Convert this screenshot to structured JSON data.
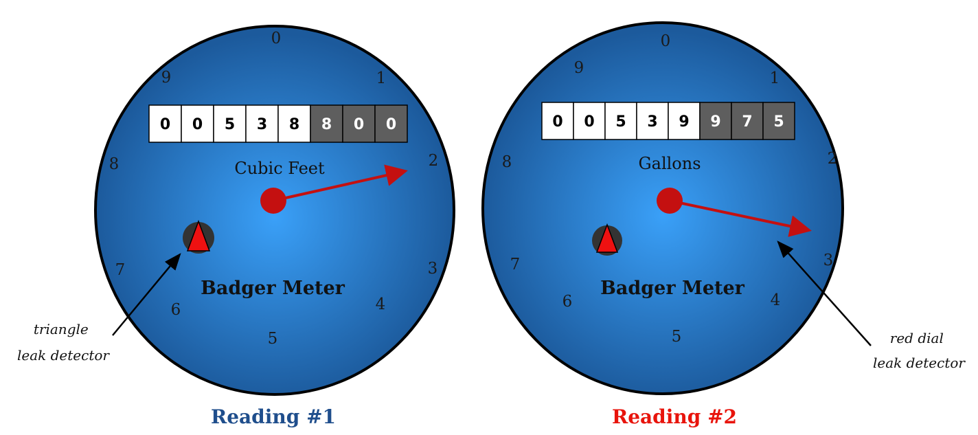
{
  "meters": [
    {
      "brand": "Badger Meter",
      "unit": "Cubic Feet",
      "odometer": [
        "0",
        "0",
        "5",
        "3",
        "8",
        "8",
        "0",
        "0"
      ],
      "dark_digit_count": 3,
      "dial_numbers": [
        "0",
        "1",
        "2",
        "3",
        "4",
        "5",
        "6",
        "7",
        "8",
        "9"
      ],
      "needle_points_to": 2.0,
      "caption": "Reading #1",
      "caption_color": "#1f4e8c",
      "annotation": [
        "triangle",
        "leak detector"
      ]
    },
    {
      "brand": "Badger Meter",
      "unit": "Gallons",
      "odometer": [
        "0",
        "0",
        "5",
        "3",
        "9",
        "9",
        "7",
        "5"
      ],
      "dark_digit_count": 3,
      "dial_numbers": [
        "0",
        "1",
        "2",
        "3",
        "4",
        "5",
        "6",
        "7",
        "8",
        "9"
      ],
      "needle_points_to": 2.6,
      "caption": "Reading #2",
      "caption_color": "#e8140c",
      "annotation": [
        "red dial",
        "leak detector"
      ]
    }
  ],
  "colors": {
    "face_center": "#3aa0f8",
    "face_edge": "#1c5a9c",
    "needle": "#c41010",
    "leak_triangle": "#ee1111",
    "leak_base": "#333333",
    "dark_digit_bg": "#5e5e5e"
  }
}
